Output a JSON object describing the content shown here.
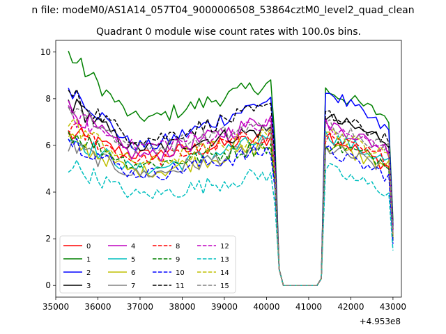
{
  "header": {
    "suptitle": "n file: modeM0/AS1A14_057T04_9000006508_53864cztM0_level2_quad_clean"
  },
  "chart_data": {
    "type": "line",
    "title": "Quadrant 0 module wise count rates with 100.0s bins.",
    "xlabel": "",
    "ylabel": "",
    "x_offset_label": "+4.953e8",
    "xlim": [
      35000,
      43200
    ],
    "ylim": [
      -0.5,
      10.5
    ],
    "xticks": [
      35000,
      36000,
      37000,
      38000,
      39000,
      40000,
      41000,
      42000,
      43000
    ],
    "xtick_labels": [
      "35000",
      "36000",
      "37000",
      "38000",
      "39000",
      "40000",
      "41000",
      "42000",
      "43000"
    ],
    "yticks": [
      0,
      2,
      4,
      6,
      8,
      10
    ],
    "ytick_labels": [
      "0",
      "2",
      "4",
      "6",
      "8",
      "10"
    ],
    "grid": false,
    "legend_position": "lower-left",
    "legend_columns": 4,
    "segments": [
      {
        "x0": 35300,
        "x1": 40200,
        "step": 100
      },
      {
        "x0": 40200,
        "x1": 41300,
        "step": 100
      },
      {
        "x0": 41300,
        "x1": 43000,
        "step": 100
      }
    ],
    "series": [
      {
        "name": "0",
        "color": "#ff0000",
        "dash": "solid",
        "level_a": 6.5,
        "level_b": 5.6,
        "level_c": 6.3,
        "level_d": 6.5,
        "level_e": 5.1
      },
      {
        "name": "1",
        "color": "#008000",
        "dash": "solid",
        "level_a": 9.9,
        "level_b": 7.2,
        "level_c": 8.7,
        "level_d": 8.4,
        "level_e": 7.2
      },
      {
        "name": "2",
        "color": "#0000ff",
        "dash": "solid",
        "level_a": 8.6,
        "level_b": 6.0,
        "level_c": 8.0,
        "level_d": 8.4,
        "level_e": 6.6
      },
      {
        "name": "3",
        "color": "#000000",
        "dash": "solid",
        "level_a": 7.9,
        "level_b": 5.9,
        "level_c": 6.7,
        "level_d": 7.2,
        "level_e": 6.2
      },
      {
        "name": "4",
        "color": "#bf00bf",
        "dash": "solid",
        "level_a": 7.6,
        "level_b": 5.6,
        "level_c": 7.2,
        "level_d": 7.0,
        "level_e": 5.8
      },
      {
        "name": "5",
        "color": "#00bfbf",
        "dash": "solid",
        "level_a": 6.4,
        "level_b": 5.0,
        "level_c": 6.3,
        "level_d": 6.5,
        "level_e": 5.3
      },
      {
        "name": "6",
        "color": "#bfbf00",
        "dash": "solid",
        "level_a": 6.2,
        "level_b": 4.9,
        "level_c": 6.0,
        "level_d": 6.0,
        "level_e": 5.1
      },
      {
        "name": "7",
        "color": "#808080",
        "dash": "solid",
        "level_a": 6.0,
        "level_b": 4.8,
        "level_c": 6.0,
        "level_d": 5.9,
        "level_e": 5.0
      },
      {
        "name": "8",
        "color": "#ff0000",
        "dash": "dashed",
        "level_a": 6.8,
        "level_b": 5.4,
        "level_c": 6.5,
        "level_d": 6.3,
        "level_e": 5.4
      },
      {
        "name": "9",
        "color": "#008000",
        "dash": "dashed",
        "level_a": 6.6,
        "level_b": 5.2,
        "level_c": 6.0,
        "level_d": 6.1,
        "level_e": 5.3
      },
      {
        "name": "10",
        "color": "#0000ff",
        "dash": "dashed",
        "level_a": 6.3,
        "level_b": 4.8,
        "level_c": 5.8,
        "level_d": 5.8,
        "level_e": 4.7
      },
      {
        "name": "11",
        "color": "#000000",
        "dash": "dashed",
        "level_a": 8.3,
        "level_b": 6.3,
        "level_c": 7.6,
        "level_d": 7.3,
        "level_e": 6.3
      },
      {
        "name": "12",
        "color": "#bf00bf",
        "dash": "dashed",
        "level_a": 7.3,
        "level_b": 6.0,
        "level_c": 6.9,
        "level_d": 6.8,
        "level_e": 5.8
      },
      {
        "name": "13",
        "color": "#00bfbf",
        "dash": "dashed",
        "level_a": 5.2,
        "level_b": 3.9,
        "level_c": 4.8,
        "level_d": 5.0,
        "level_e": 4.0
      },
      {
        "name": "14",
        "color": "#bfbf00",
        "dash": "dashed",
        "level_a": 7.0,
        "level_b": 5.3,
        "level_c": 6.5,
        "level_d": 6.7,
        "level_e": 5.5
      },
      {
        "name": "15",
        "color": "#808080",
        "dash": "dashed",
        "level_a": 7.8,
        "level_b": 5.9,
        "level_c": 6.9,
        "level_d": 7.0,
        "level_e": 5.9
      }
    ]
  }
}
